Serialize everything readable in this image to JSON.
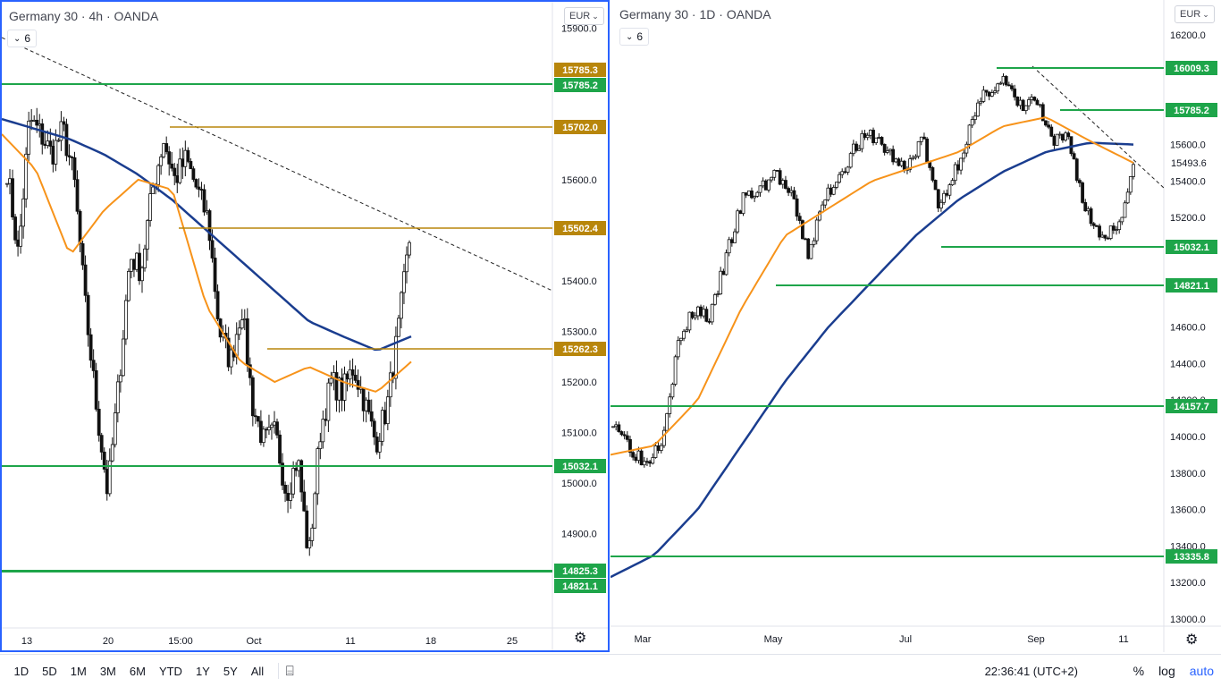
{
  "colors": {
    "green": "#1ea54a",
    "gold": "#b8860b",
    "blue": "#1a3d8f",
    "orange": "#f7931a",
    "accent": "#2962ff",
    "trend": "#222222"
  },
  "left_chart": {
    "title": "Germany 30 · 4h · OANDA",
    "indicator_count": "6",
    "currency": "EUR",
    "price_ticks": [
      "15900.0",
      "15600.0",
      "15400.0",
      "15300.0",
      "15200.0",
      "15100.0",
      "15000.0",
      "14900.0"
    ],
    "time_ticks": [
      "13",
      "20",
      "15:00",
      "Oct",
      "11",
      "18",
      "25"
    ],
    "levels": [
      {
        "value": "15785.3",
        "color": "gold"
      },
      {
        "value": "15785.2",
        "color": "green"
      },
      {
        "value": "15702.0",
        "color": "gold"
      },
      {
        "value": "15502.4",
        "color": "gold"
      },
      {
        "value": "15262.3",
        "color": "gold"
      },
      {
        "value": "15032.1",
        "color": "green"
      },
      {
        "value": "14825.3",
        "color": "green"
      },
      {
        "value": "14821.1",
        "color": "green"
      }
    ]
  },
  "right_chart": {
    "title": "Germany 30 · 1D · OANDA",
    "indicator_count": "6",
    "currency": "EUR",
    "price_ticks": [
      "16200.0",
      "15600.0",
      "15400.0",
      "15200.0",
      "14600.0",
      "14400.0",
      "14200.0",
      "14000.0",
      "13800.0",
      "13600.0",
      "13400.0",
      "13200.0",
      "13000.0"
    ],
    "time_ticks": [
      "Mar",
      "May",
      "Jul",
      "Sep",
      "11"
    ],
    "last_price": "15493.6",
    "levels": [
      {
        "value": "16009.3",
        "color": "green"
      },
      {
        "value": "15785.2",
        "color": "green"
      },
      {
        "value": "15032.1",
        "color": "green"
      },
      {
        "value": "14821.1",
        "color": "green"
      },
      {
        "value": "14157.7",
        "color": "green"
      },
      {
        "value": "13335.8",
        "color": "green"
      }
    ]
  },
  "bottom_bar": {
    "ranges": [
      "1D",
      "5D",
      "1M",
      "3M",
      "6M",
      "YTD",
      "1Y",
      "5Y",
      "All"
    ],
    "clock": "22:36:41 (UTC+2)",
    "percent": "%",
    "log": "log",
    "auto": "auto"
  }
}
